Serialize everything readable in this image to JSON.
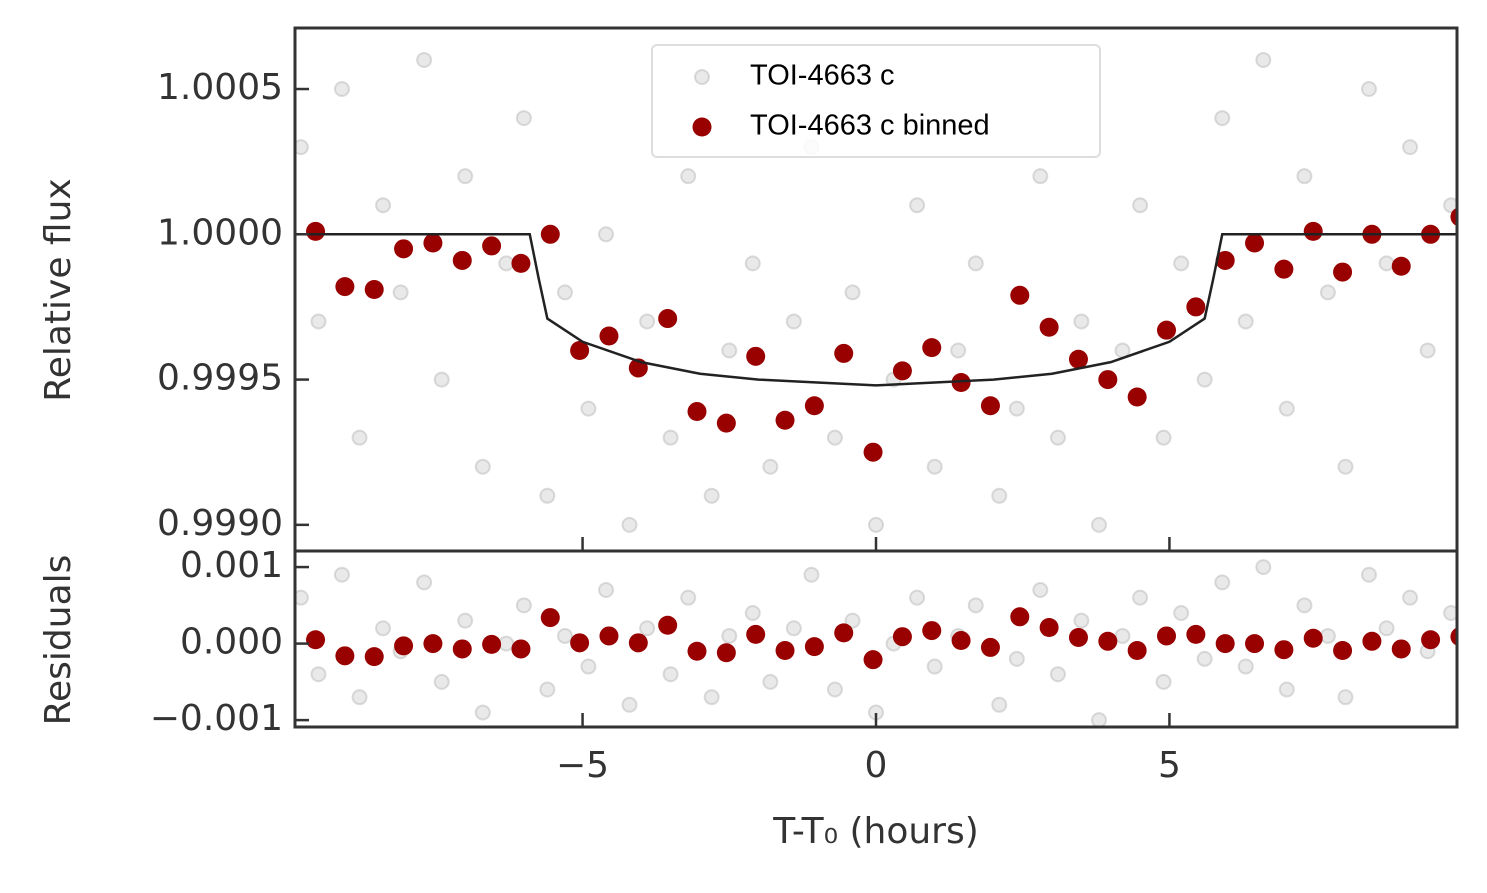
{
  "chart_data": [
    {
      "type": "scatter",
      "ylabel": "Relative flux",
      "xlim": [
        -9.9,
        9.9
      ],
      "ylim": [
        0.99891,
        1.00071
      ],
      "yticks": [
        {
          "value": 0.999,
          "label": "0.9990"
        },
        0.9995,
        {
          "value": 1,
          "label": "1.0000"
        },
        1.0005
      ],
      "legend": "upper center",
      "series": [
        {
          "name": "TOI-4663 c",
          "color": "#c8c8c8",
          "opacity": 0.4,
          "x": [
            -9.8,
            -9.5,
            -9.1,
            -8.8,
            -8.4,
            -8.1,
            -7.7,
            -7.4,
            -7.0,
            -6.7,
            -6.3,
            -6.0,
            -5.6,
            -5.3,
            -4.9,
            -4.6,
            -4.2,
            -3.9,
            -3.5,
            -3.2,
            -2.8,
            -2.5,
            -2.1,
            -1.8,
            -1.4,
            -1.1,
            -0.7,
            -0.4,
            0.0,
            0.3,
            0.7,
            1.0,
            1.4,
            1.7,
            2.1,
            2.4,
            2.8,
            3.1,
            3.5,
            3.8,
            4.2,
            4.5,
            4.9,
            5.2,
            5.6,
            5.9,
            6.3,
            6.6,
            7.0,
            7.3,
            7.7,
            8.0,
            8.4,
            8.7,
            9.1,
            9.4,
            9.8
          ],
          "values": [
            1.0003,
            0.9997,
            1.0005,
            0.9993,
            1.0001,
            0.9998,
            1.0006,
            0.9995,
            1.0002,
            0.9992,
            0.9999,
            1.0004,
            0.9991,
            0.9998,
            0.9994,
            1.0,
            0.999,
            0.9997,
            0.9993,
            1.0002,
            0.9991,
            0.9996,
            0.9999,
            0.9992,
            0.9997,
            1.0003,
            0.9993,
            0.9998,
            0.999,
            0.9995,
            1.0001,
            0.9992,
            0.9996,
            0.9999,
            0.9991,
            0.9994,
            1.0002,
            0.9993,
            0.9997,
            0.999,
            0.9996,
            1.0001,
            0.9993,
            0.9999,
            0.9995,
            1.0004,
            0.9997,
            1.0006,
            0.9994,
            1.0002,
            0.9998,
            0.9992,
            1.0005,
            0.9999,
            1.0003,
            0.9996,
            1.0001
          ]
        },
        {
          "name": "TOI-4663 c binned",
          "color": "#990000",
          "x": [
            -9.55,
            -9.05,
            -8.55,
            -8.05,
            -7.55,
            -7.05,
            -6.55,
            -6.05,
            -5.55,
            -5.05,
            -4.55,
            -4.05,
            -3.55,
            -3.05,
            -2.55,
            -2.05,
            -1.55,
            -1.05,
            -0.55,
            -0.05,
            0.45,
            0.95,
            1.45,
            1.95,
            2.45,
            2.95,
            3.45,
            3.95,
            4.45,
            4.95,
            5.45,
            5.95,
            6.45,
            6.95,
            7.45,
            7.95,
            8.45,
            8.95,
            9.45,
            9.95
          ],
          "values": [
            1.00001,
            0.99982,
            0.99981,
            0.99995,
            0.99997,
            0.99991,
            0.99996,
            0.9999,
            1.0,
            0.9996,
            0.99965,
            0.99954,
            0.99971,
            0.99939,
            0.99935,
            0.99958,
            0.99936,
            0.99941,
            0.99959,
            0.99925,
            0.99953,
            0.99961,
            0.99949,
            0.99941,
            0.99979,
            0.99968,
            0.99957,
            0.9995,
            0.99944,
            0.99967,
            0.99975,
            0.99991,
            0.99997,
            0.99988,
            1.00001,
            0.99987,
            1.0,
            0.99989,
            1.0,
            1.00006
          ]
        },
        {
          "type": "line",
          "color": "#222222",
          "x": [
            -9.9,
            -5.9,
            -5.75,
            -5.6,
            -5,
            -4,
            -3,
            -2,
            -1,
            0,
            1,
            2,
            3,
            4,
            5,
            5.6,
            5.75,
            5.9,
            9.9
          ],
          "values": [
            1,
            1,
            0.99985,
            0.99971,
            0.99963,
            0.99956,
            0.99952,
            0.9995,
            0.99949,
            0.99948,
            0.99949,
            0.9995,
            0.99952,
            0.99956,
            0.99963,
            0.99971,
            0.99985,
            1,
            1
          ]
        }
      ]
    },
    {
      "type": "scatter",
      "ylabel": "Residuals",
      "xlabel": "T-T₀ (hours)",
      "xlim": [
        -9.9,
        9.9
      ],
      "xticks": [
        {
          "value": -5,
          "label": "−5"
        },
        0,
        5
      ],
      "ylim": [
        -0.00109,
        0.00121
      ],
      "yticks": [
        {
          "value": -0.001,
          "label": "−0.001"
        },
        {
          "value": 0,
          "label": "0.000"
        },
        0.001
      ],
      "series": [
        {
          "color": "#c8c8c8",
          "opacity": 0.4,
          "x": [
            -9.8,
            -9.5,
            -9.1,
            -8.8,
            -8.4,
            -8.1,
            -7.7,
            -7.4,
            -7.0,
            -6.7,
            -6.3,
            -6.0,
            -5.6,
            -5.3,
            -4.9,
            -4.6,
            -4.2,
            -3.9,
            -3.5,
            -3.2,
            -2.8,
            -2.5,
            -2.1,
            -1.8,
            -1.4,
            -1.1,
            -0.7,
            -0.4,
            0.0,
            0.3,
            0.7,
            1.0,
            1.4,
            1.7,
            2.1,
            2.4,
            2.8,
            3.1,
            3.5,
            3.8,
            4.2,
            4.5,
            4.9,
            5.2,
            5.6,
            5.9,
            6.3,
            6.6,
            7.0,
            7.3,
            7.7,
            8.0,
            8.4,
            8.7,
            9.1,
            9.4,
            9.8
          ],
          "values": [
            0.0006,
            -0.0004,
            0.0009,
            -0.0007,
            0.0002,
            -0.0001,
            0.0008,
            -0.0005,
            0.0003,
            -0.0009,
            0.0,
            0.0005,
            -0.0006,
            0.0001,
            -0.0003,
            0.0007,
            -0.0008,
            0.0002,
            -0.0004,
            0.0006,
            -0.0007,
            0.0001,
            0.0004,
            -0.0005,
            0.0002,
            0.0009,
            -0.0006,
            0.0003,
            -0.0009,
            0.0,
            0.0006,
            -0.0003,
            0.0001,
            0.0005,
            -0.0008,
            -0.0002,
            0.0007,
            -0.0004,
            0.0003,
            -0.001,
            0.0001,
            0.0006,
            -0.0005,
            0.0004,
            -0.0002,
            0.0008,
            -0.0003,
            0.001,
            -0.0006,
            0.0005,
            0.0001,
            -0.0007,
            0.0009,
            0.0002,
            0.0006,
            -0.0001,
            0.0004
          ]
        },
        {
          "color": "#990000",
          "x": [
            -9.55,
            -9.05,
            -8.55,
            -8.05,
            -7.55,
            -7.05,
            -6.55,
            -6.05,
            -5.55,
            -5.05,
            -4.55,
            -4.05,
            -3.55,
            -3.05,
            -2.55,
            -2.05,
            -1.55,
            -1.05,
            -0.55,
            -0.05,
            0.45,
            0.95,
            1.45,
            1.95,
            2.45,
            2.95,
            3.45,
            3.95,
            4.45,
            4.95,
            5.45,
            5.95,
            6.45,
            6.95,
            7.45,
            7.95,
            8.45,
            8.95,
            9.45,
            9.95
          ],
          "values": [
            5e-05,
            -0.00016,
            -0.00017,
            -3e-05,
            0.0,
            -7e-05,
            -1e-05,
            -7e-05,
            0.00034,
            1e-05,
            0.0001,
            1e-05,
            0.00024,
            -0.0001,
            -0.00012,
            0.00012,
            -9e-05,
            -4e-05,
            0.00014,
            -0.00021,
            9e-05,
            0.00017,
            4e-05,
            -5e-05,
            0.00035,
            0.00021,
            8e-05,
            3e-05,
            -9e-05,
            0.0001,
            0.00012,
            0.0,
            0.0,
            -8e-05,
            7e-05,
            -9e-05,
            3e-05,
            -7e-05,
            5e-05,
            9e-05
          ]
        }
      ]
    }
  ]
}
